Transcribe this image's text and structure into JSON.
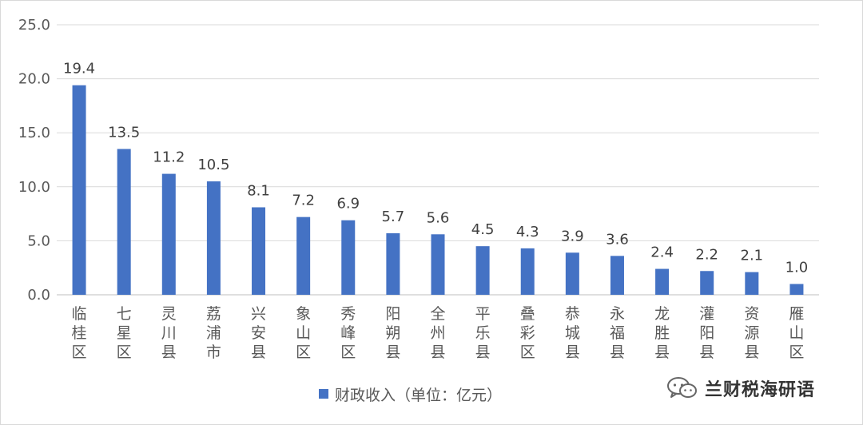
{
  "chart_data": {
    "type": "bar",
    "categories": [
      "临桂区",
      "七星区",
      "灵川县",
      "荔浦市",
      "兴安县",
      "象山区",
      "秀峰区",
      "阳朔县",
      "全州县",
      "平乐县",
      "叠彩区",
      "恭城县",
      "永福县",
      "龙胜县",
      "灌阳县",
      "资源县",
      "雁山区"
    ],
    "series": [
      {
        "name": "财政收入（单位：亿元）",
        "values": [
          19.4,
          13.5,
          11.2,
          10.5,
          8.1,
          7.2,
          6.9,
          5.7,
          5.6,
          4.5,
          4.3,
          3.9,
          3.6,
          2.4,
          2.2,
          2.1,
          1.0
        ],
        "labels": [
          "19.4",
          "13.5",
          "11.2",
          "10.5",
          "8.1",
          "7.2",
          "6.9",
          "5.7",
          "5.6",
          "4.5",
          "4.3",
          "3.9",
          "3.6",
          "2.4",
          "2.2",
          "2.1",
          "1.0"
        ]
      }
    ],
    "yticks": [
      "0.0",
      "5.0",
      "10.0",
      "15.0",
      "20.0",
      "25.0"
    ],
    "ylim": [
      0,
      25
    ],
    "grid": true,
    "legend_position": "bottom",
    "bar_color": "#4472c4"
  },
  "watermark": {
    "text": "兰财税海研语",
    "icon": "wechat-icon"
  }
}
